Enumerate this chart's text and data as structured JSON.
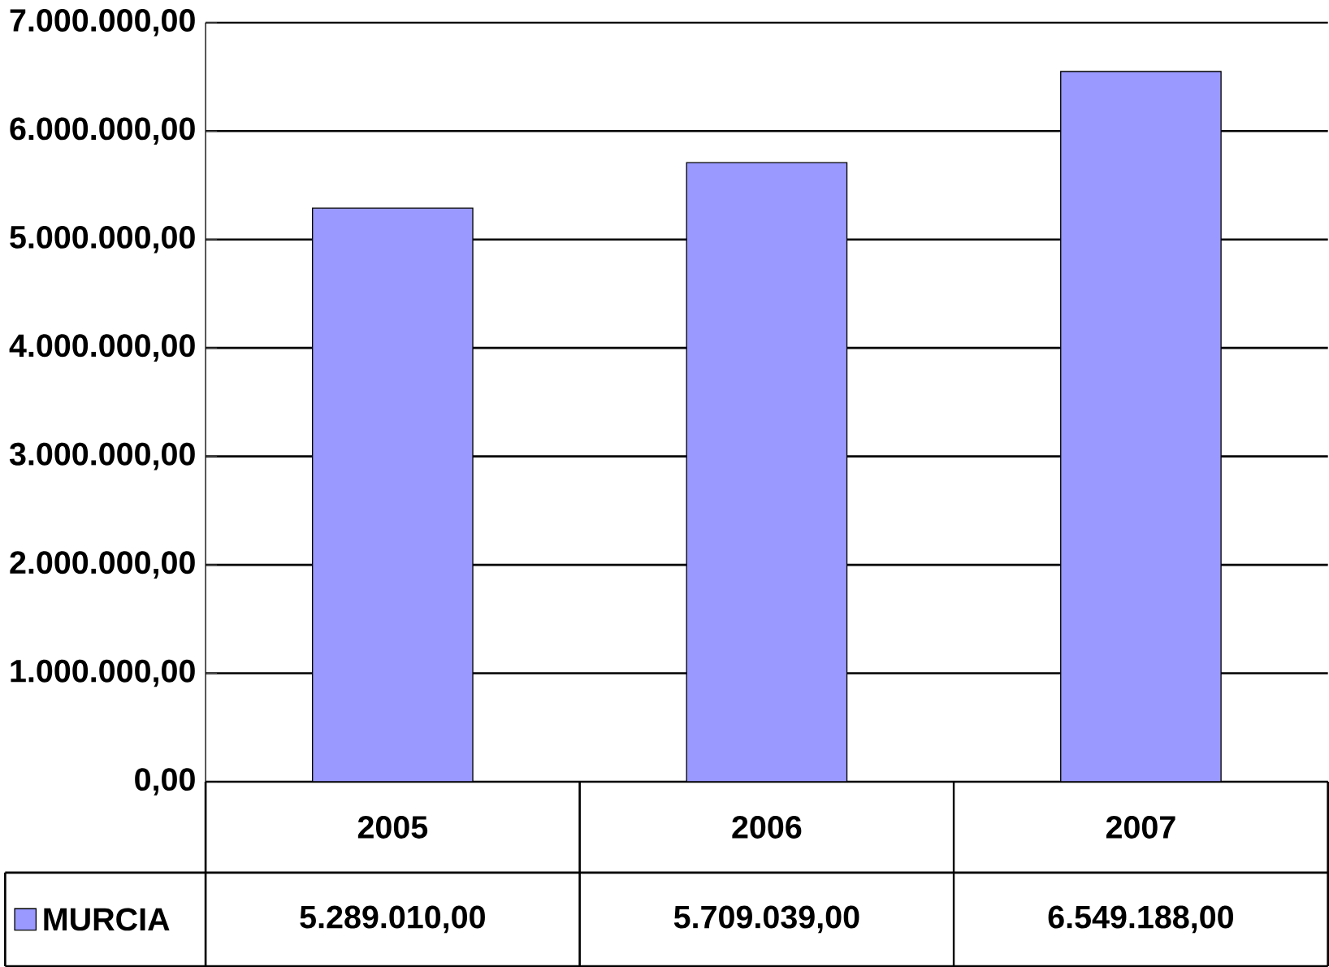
{
  "chart_data": {
    "type": "bar",
    "categories": [
      "2005",
      "2006",
      "2007"
    ],
    "series": [
      {
        "name": "MURCIA",
        "color": "#9999ff",
        "values": [
          5289010,
          5709039,
          6549188
        ],
        "value_labels": [
          "5.289.010,00",
          "5.709.039,00",
          "6.549.188,00"
        ]
      }
    ],
    "ylim": [
      0,
      7000000
    ],
    "yticks": [
      {
        "value": 0,
        "label": "0,00"
      },
      {
        "value": 1000000,
        "label": "1.000.000,00"
      },
      {
        "value": 2000000,
        "label": "2.000.000,00"
      },
      {
        "value": 3000000,
        "label": "3.000.000,00"
      },
      {
        "value": 4000000,
        "label": "4.000.000,00"
      },
      {
        "value": 5000000,
        "label": "5.000.000,00"
      },
      {
        "value": 6000000,
        "label": "6.000.000,00"
      },
      {
        "value": 7000000,
        "label": "7.000.000,00"
      }
    ],
    "grid": "y",
    "legend": "bottom left"
  }
}
